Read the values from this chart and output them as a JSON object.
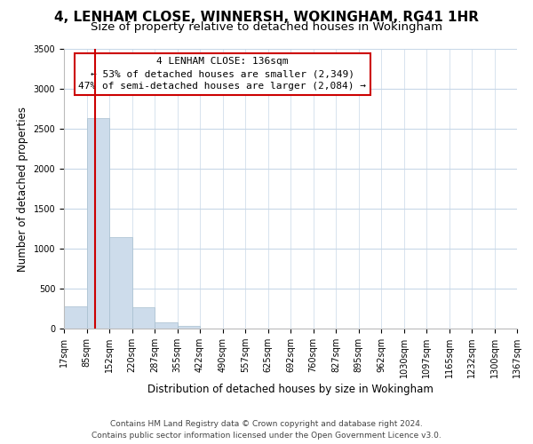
{
  "title": "4, LENHAM CLOSE, WINNERSH, WOKINGHAM, RG41 1HR",
  "subtitle": "Size of property relative to detached houses in Wokingham",
  "xlabel": "Distribution of detached houses by size in Wokingham",
  "ylabel": "Number of detached properties",
  "bar_values": [
    275,
    2630,
    1140,
    270,
    80,
    35,
    0,
    0,
    0,
    0,
    0,
    0,
    0,
    0,
    0,
    0,
    0,
    0,
    0,
    0
  ],
  "bin_labels": [
    "17sqm",
    "85sqm",
    "152sqm",
    "220sqm",
    "287sqm",
    "355sqm",
    "422sqm",
    "490sqm",
    "557sqm",
    "625sqm",
    "692sqm",
    "760sqm",
    "827sqm",
    "895sqm",
    "962sqm",
    "1030sqm",
    "1097sqm",
    "1165sqm",
    "1232sqm",
    "1300sqm",
    "1367sqm"
  ],
  "bar_color": "#cddceb",
  "bar_edge_color": "#a8bfcf",
  "vline_color": "#cc0000",
  "vline_position": 1.38,
  "ylim": [
    0,
    3500
  ],
  "yticks": [
    0,
    500,
    1000,
    1500,
    2000,
    2500,
    3000,
    3500
  ],
  "annotation_title": "4 LENHAM CLOSE: 136sqm",
  "annotation_line1": "← 53% of detached houses are smaller (2,349)",
  "annotation_line2": "47% of semi-detached houses are larger (2,084) →",
  "footer_line1": "Contains HM Land Registry data © Crown copyright and database right 2024.",
  "footer_line2": "Contains public sector information licensed under the Open Government Licence v3.0.",
  "title_fontsize": 11,
  "subtitle_fontsize": 9.5,
  "axis_label_fontsize": 8.5,
  "tick_fontsize": 7,
  "annotation_fontsize": 8,
  "footer_fontsize": 6.5,
  "background_color": "#ffffff",
  "grid_color": "#c8d8e8"
}
